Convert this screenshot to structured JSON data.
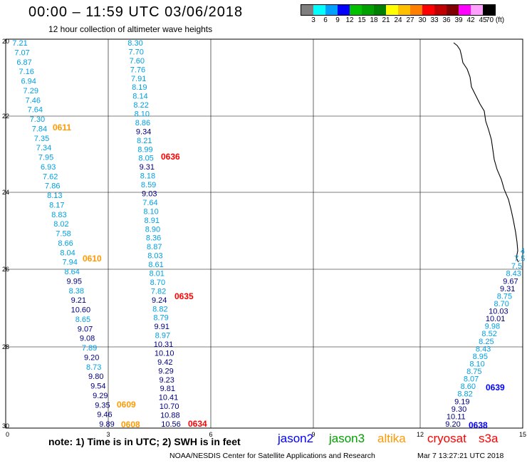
{
  "header": {
    "title": "00:00 – 11:59 UTC 03/06/2018",
    "subtitle": "12 hour collection of altimeter wave heights"
  },
  "legend": {
    "colors": [
      "#7f7f7f",
      "#00ffff",
      "#00a0ff",
      "#0000ff",
      "#00c000",
      "#00a000",
      "#008000",
      "#ffff00",
      "#ffc000",
      "#ff8000",
      "#ff0000",
      "#c00000",
      "#800000",
      "#ff00ff",
      "#ffa0ff",
      "#000000"
    ],
    "labels": [
      "3",
      "6",
      "9",
      "12",
      "15",
      "18",
      "21",
      "24",
      "27",
      "30",
      "33",
      "36",
      "39",
      "42",
      "45",
      "70 (ft)"
    ]
  },
  "axes": {
    "x_ticks": [
      "0",
      "3",
      "6",
      "9",
      "12",
      "15"
    ],
    "y_ticks": [
      "20",
      "22",
      "24",
      "26",
      "28",
      "30"
    ]
  },
  "track_colors": {
    "jason2": "#0000ff",
    "jason3": "#00a000",
    "altika": "#ff9900",
    "cryosat": "#ff0000",
    "s3a": "#ff0000",
    "track_cyan": "#00a0e0",
    "track_navy": "#000080"
  },
  "tracks": [
    {
      "id": "track-west",
      "values": [
        {
          "v": "7.21",
          "c": "c"
        },
        {
          "v": "7.07",
          "c": "c"
        },
        {
          "v": "6.87",
          "c": "c"
        },
        {
          "v": "7.16",
          "c": "c"
        },
        {
          "v": "6.94",
          "c": "c"
        },
        {
          "v": "7.29",
          "c": "c"
        },
        {
          "v": "7.46",
          "c": "c"
        },
        {
          "v": "7.64",
          "c": "c"
        },
        {
          "v": "7.30",
          "c": "c"
        },
        {
          "v": "7.84",
          "c": "c"
        },
        {
          "v": "7.35",
          "c": "c"
        },
        {
          "v": "7.34",
          "c": "c"
        },
        {
          "v": "7.95",
          "c": "c"
        },
        {
          "v": "6.93",
          "c": "c"
        },
        {
          "v": "7.62",
          "c": "c"
        },
        {
          "v": "7.86",
          "c": "c"
        },
        {
          "v": "8.13",
          "c": "c"
        },
        {
          "v": "8.17",
          "c": "c"
        },
        {
          "v": "8.83",
          "c": "c"
        },
        {
          "v": "8.02",
          "c": "c"
        },
        {
          "v": "7.58",
          "c": "c"
        },
        {
          "v": "8.66",
          "c": "c"
        },
        {
          "v": "8.04",
          "c": "c"
        },
        {
          "v": "7.94",
          "c": "c"
        },
        {
          "v": "8.64",
          "c": "c"
        },
        {
          "v": "9.95",
          "c": "n"
        },
        {
          "v": "8.38",
          "c": "c"
        },
        {
          "v": "9.21",
          "c": "n"
        },
        {
          "v": "10.60",
          "c": "n"
        },
        {
          "v": "8.65",
          "c": "c"
        },
        {
          "v": "9.07",
          "c": "n"
        },
        {
          "v": "9.08",
          "c": "n"
        },
        {
          "v": "7.89",
          "c": "c"
        },
        {
          "v": "9.20",
          "c": "n"
        },
        {
          "v": "8.73",
          "c": "c"
        },
        {
          "v": "9.80",
          "c": "n"
        },
        {
          "v": "9.54",
          "c": "n"
        },
        {
          "v": "9.29",
          "c": "n"
        },
        {
          "v": "9.35",
          "c": "n"
        },
        {
          "v": "9.46",
          "c": "n"
        },
        {
          "v": "9.89",
          "c": "n"
        }
      ]
    },
    {
      "id": "track-center",
      "values": [
        {
          "v": "8.30",
          "c": "c"
        },
        {
          "v": "7.70",
          "c": "c"
        },
        {
          "v": "7.60",
          "c": "c"
        },
        {
          "v": "7.76",
          "c": "c"
        },
        {
          "v": "7.91",
          "c": "c"
        },
        {
          "v": "8.19",
          "c": "c"
        },
        {
          "v": "8.14",
          "c": "c"
        },
        {
          "v": "8.22",
          "c": "c"
        },
        {
          "v": "8.10",
          "c": "c"
        },
        {
          "v": "8.86",
          "c": "c"
        },
        {
          "v": "9.34",
          "c": "n"
        },
        {
          "v": "8.21",
          "c": "c"
        },
        {
          "v": "8.99",
          "c": "c"
        },
        {
          "v": "8.05",
          "c": "c"
        },
        {
          "v": "9.31",
          "c": "n"
        },
        {
          "v": "8.18",
          "c": "c"
        },
        {
          "v": "8.59",
          "c": "c"
        },
        {
          "v": "9.03",
          "c": "n"
        },
        {
          "v": "7.64",
          "c": "c"
        },
        {
          "v": "8.10",
          "c": "c"
        },
        {
          "v": "8.91",
          "c": "c"
        },
        {
          "v": "8.90",
          "c": "c"
        },
        {
          "v": "8.36",
          "c": "c"
        },
        {
          "v": "8.87",
          "c": "c"
        },
        {
          "v": "8.03",
          "c": "c"
        },
        {
          "v": "8.61",
          "c": "c"
        },
        {
          "v": "8.01",
          "c": "c"
        },
        {
          "v": "8.70",
          "c": "c"
        },
        {
          "v": "7.82",
          "c": "c"
        },
        {
          "v": "9.24",
          "c": "n"
        },
        {
          "v": "8.82",
          "c": "c"
        },
        {
          "v": "8.79",
          "c": "c"
        },
        {
          "v": "9.91",
          "c": "n"
        },
        {
          "v": "8.97",
          "c": "c"
        },
        {
          "v": "10.31",
          "c": "n"
        },
        {
          "v": "10.10",
          "c": "n"
        },
        {
          "v": "9.42",
          "c": "n"
        },
        {
          "v": "9.29",
          "c": "n"
        },
        {
          "v": "9.23",
          "c": "n"
        },
        {
          "v": "9.81",
          "c": "n"
        },
        {
          "v": "10.41",
          "c": "n"
        },
        {
          "v": "10.70",
          "c": "n"
        },
        {
          "v": "10.88",
          "c": "n"
        },
        {
          "v": "10.56",
          "c": "n"
        }
      ]
    },
    {
      "id": "track-east",
      "values": [
        {
          "v": "4",
          "c": "c"
        },
        {
          "v": "7.5",
          "c": "c"
        },
        {
          "v": "7.5",
          "c": "c"
        },
        {
          "v": "8.43",
          "c": "c"
        },
        {
          "v": "9.67",
          "c": "n"
        },
        {
          "v": "9.31",
          "c": "n"
        },
        {
          "v": "8.75",
          "c": "c"
        },
        {
          "v": "8.70",
          "c": "c"
        },
        {
          "v": "10.03",
          "c": "n"
        },
        {
          "v": "10.01",
          "c": "n"
        },
        {
          "v": "9.98",
          "c": "c"
        },
        {
          "v": "8.52",
          "c": "c"
        },
        {
          "v": "8.25",
          "c": "c"
        },
        {
          "v": "8.43",
          "c": "c"
        },
        {
          "v": "8.95",
          "c": "c"
        },
        {
          "v": "8.10",
          "c": "c"
        },
        {
          "v": "8.75",
          "c": "c"
        },
        {
          "v": "8.07",
          "c": "c"
        },
        {
          "v": "8.60",
          "c": "c"
        },
        {
          "v": "8.82",
          "c": "c"
        },
        {
          "v": "9.19",
          "c": "n"
        },
        {
          "v": "9.30",
          "c": "n"
        },
        {
          "v": "10.11",
          "c": "n"
        },
        {
          "v": "9.20",
          "c": "n"
        }
      ]
    }
  ],
  "time_labels": [
    {
      "text": "0611",
      "sat": "altika"
    },
    {
      "text": "0636",
      "sat": "cryosat"
    },
    {
      "text": "0610",
      "sat": "altika"
    },
    {
      "text": "0635",
      "sat": "cryosat"
    },
    {
      "text": "0609",
      "sat": "altika"
    },
    {
      "text": "0608",
      "sat": "altika"
    },
    {
      "text": "0634",
      "sat": "cryosat"
    },
    {
      "text": "0639",
      "sat": "jason2"
    },
    {
      "text": "0638",
      "sat": "jason2"
    }
  ],
  "note": "note: 1) Time is in UTC; 2) SWH is in feet",
  "satellites": [
    {
      "name": "jason2",
      "color": "#0000ff"
    },
    {
      "name": "jason3",
      "color": "#00a000"
    },
    {
      "name": "altika",
      "color": "#ff9900"
    },
    {
      "name": "cryosat",
      "color": "#ff0000"
    },
    {
      "name": "s3a",
      "color": "#ff0000"
    }
  ],
  "footer": {
    "credit": "NOAA/NESDIS Center for Satellite Applications and Research",
    "generated": "Mar  7 13:27:21 UTC 2018"
  }
}
